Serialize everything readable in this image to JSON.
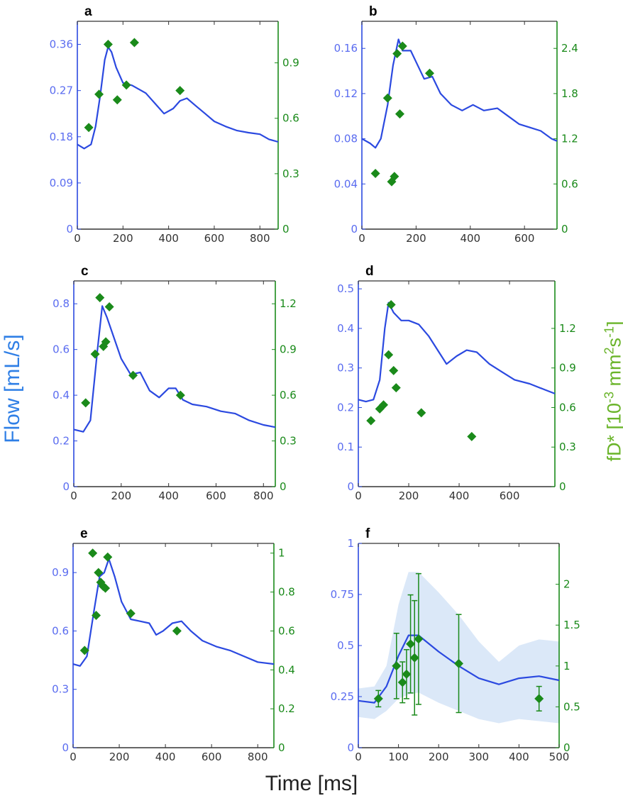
{
  "labels": {
    "x": "Time [ms]",
    "y_left": "Flow [mL/s]",
    "y_right": "fD* [10-3 mm2s-1]"
  },
  "colors": {
    "flow": "#2b49e0",
    "flow_axis": "#5a6cf0",
    "fd": "#1a8a1a",
    "band": "#dbe8f8"
  },
  "chart_data": [
    {
      "type": "line",
      "panel": "a",
      "xlim": [
        0,
        880
      ],
      "xticks": [
        0,
        200,
        400,
        600,
        800
      ],
      "ylim_left": [
        0,
        0.405
      ],
      "yticks_left": [
        0,
        0.09,
        0.18,
        0.27,
        0.36
      ],
      "ylim_right": [
        0,
        1.125
      ],
      "yticks_right": [
        0,
        0.3,
        0.6,
        0.9
      ],
      "flow": [
        [
          0,
          0.165
        ],
        [
          30,
          0.157
        ],
        [
          60,
          0.165
        ],
        [
          80,
          0.2
        ],
        [
          100,
          0.26
        ],
        [
          120,
          0.33
        ],
        [
          135,
          0.355
        ],
        [
          150,
          0.345
        ],
        [
          170,
          0.315
        ],
        [
          200,
          0.285
        ],
        [
          240,
          0.28
        ],
        [
          300,
          0.265
        ],
        [
          350,
          0.24
        ],
        [
          380,
          0.225
        ],
        [
          420,
          0.235
        ],
        [
          450,
          0.25
        ],
        [
          480,
          0.255
        ],
        [
          520,
          0.24
        ],
        [
          560,
          0.225
        ],
        [
          600,
          0.21
        ],
        [
          650,
          0.2
        ],
        [
          700,
          0.192
        ],
        [
          750,
          0.188
        ],
        [
          800,
          0.185
        ],
        [
          840,
          0.175
        ],
        [
          880,
          0.17
        ]
      ],
      "fd": [
        [
          50,
          0.55
        ],
        [
          95,
          0.73
        ],
        [
          135,
          1.0
        ],
        [
          175,
          0.7
        ],
        [
          215,
          0.78
        ],
        [
          250,
          1.01
        ],
        [
          450,
          0.75
        ]
      ]
    },
    {
      "type": "line",
      "panel": "b",
      "xlim": [
        0,
        720
      ],
      "xticks": [
        0,
        200,
        400,
        600
      ],
      "ylim_left": [
        0,
        0.184
      ],
      "yticks_left": [
        0,
        0.04,
        0.08,
        0.12,
        0.16
      ],
      "ylim_right": [
        0,
        2.76
      ],
      "yticks_right": [
        0,
        0.6,
        1.2,
        1.8,
        2.4
      ],
      "flow": [
        [
          0,
          0.08
        ],
        [
          30,
          0.076
        ],
        [
          50,
          0.072
        ],
        [
          70,
          0.08
        ],
        [
          95,
          0.11
        ],
        [
          115,
          0.145
        ],
        [
          135,
          0.168
        ],
        [
          150,
          0.158
        ],
        [
          180,
          0.158
        ],
        [
          200,
          0.148
        ],
        [
          230,
          0.133
        ],
        [
          260,
          0.135
        ],
        [
          290,
          0.12
        ],
        [
          330,
          0.11
        ],
        [
          370,
          0.105
        ],
        [
          410,
          0.11
        ],
        [
          450,
          0.105
        ],
        [
          500,
          0.107
        ],
        [
          540,
          0.1
        ],
        [
          580,
          0.093
        ],
        [
          620,
          0.09
        ],
        [
          660,
          0.087
        ],
        [
          700,
          0.08
        ],
        [
          720,
          0.078
        ]
      ],
      "fd": [
        [
          50,
          0.74
        ],
        [
          95,
          1.74
        ],
        [
          110,
          0.63
        ],
        [
          120,
          0.7
        ],
        [
          130,
          2.33
        ],
        [
          140,
          1.53
        ],
        [
          150,
          2.43
        ],
        [
          250,
          2.07
        ]
      ]
    },
    {
      "type": "line",
      "panel": "c",
      "xlim": [
        0,
        850
      ],
      "xticks": [
        0,
        200,
        400,
        600,
        800
      ],
      "ylim_left": [
        0,
        0.9
      ],
      "yticks_left": [
        0,
        0.2,
        0.4,
        0.6,
        0.8
      ],
      "ylim_right": [
        0,
        1.35
      ],
      "yticks_right": [
        0,
        0.3,
        0.6,
        0.9,
        1.2
      ],
      "flow": [
        [
          0,
          0.25
        ],
        [
          40,
          0.24
        ],
        [
          70,
          0.29
        ],
        [
          100,
          0.6
        ],
        [
          120,
          0.79
        ],
        [
          140,
          0.74
        ],
        [
          170,
          0.65
        ],
        [
          200,
          0.56
        ],
        [
          240,
          0.49
        ],
        [
          280,
          0.5
        ],
        [
          320,
          0.42
        ],
        [
          360,
          0.39
        ],
        [
          400,
          0.43
        ],
        [
          430,
          0.43
        ],
        [
          460,
          0.38
        ],
        [
          500,
          0.36
        ],
        [
          560,
          0.35
        ],
        [
          620,
          0.33
        ],
        [
          680,
          0.32
        ],
        [
          740,
          0.29
        ],
        [
          800,
          0.27
        ],
        [
          850,
          0.26
        ]
      ],
      "fd": [
        [
          50,
          0.55
        ],
        [
          90,
          0.87
        ],
        [
          110,
          1.24
        ],
        [
          125,
          0.92
        ],
        [
          135,
          0.95
        ],
        [
          150,
          1.18
        ],
        [
          250,
          0.73
        ],
        [
          450,
          0.6
        ]
      ]
    },
    {
      "type": "line",
      "panel": "d",
      "xlim": [
        0,
        780
      ],
      "xticks": [
        0,
        200,
        400,
        600
      ],
      "ylim_left": [
        0,
        0.52
      ],
      "yticks_left": [
        0,
        0.1,
        0.2,
        0.3,
        0.4,
        0.5
      ],
      "ylim_right": [
        0,
        1.56
      ],
      "yticks_right": [
        0,
        0.3,
        0.6,
        0.9,
        1.2
      ],
      "flow": [
        [
          0,
          0.22
        ],
        [
          30,
          0.215
        ],
        [
          60,
          0.22
        ],
        [
          85,
          0.27
        ],
        [
          105,
          0.4
        ],
        [
          120,
          0.465
        ],
        [
          140,
          0.44
        ],
        [
          170,
          0.42
        ],
        [
          200,
          0.42
        ],
        [
          240,
          0.41
        ],
        [
          280,
          0.38
        ],
        [
          320,
          0.34
        ],
        [
          350,
          0.31
        ],
        [
          390,
          0.33
        ],
        [
          430,
          0.345
        ],
        [
          470,
          0.34
        ],
        [
          520,
          0.31
        ],
        [
          570,
          0.29
        ],
        [
          620,
          0.27
        ],
        [
          680,
          0.26
        ],
        [
          740,
          0.245
        ],
        [
          780,
          0.235
        ]
      ],
      "fd": [
        [
          50,
          0.5
        ],
        [
          85,
          0.59
        ],
        [
          100,
          0.62
        ],
        [
          120,
          1.0
        ],
        [
          130,
          1.38
        ],
        [
          140,
          0.88
        ],
        [
          150,
          0.75
        ],
        [
          250,
          0.56
        ],
        [
          450,
          0.38
        ]
      ]
    },
    {
      "type": "line",
      "panel": "e",
      "xlim": [
        0,
        870
      ],
      "xticks": [
        0,
        200,
        400,
        600,
        800
      ],
      "ylim_left": [
        0,
        1.05
      ],
      "yticks_left": [
        0,
        0.3,
        0.6,
        0.9
      ],
      "ylim_right": [
        0,
        1.05
      ],
      "yticks_right": [
        0,
        0.2,
        0.4,
        0.6,
        0.8,
        1
      ],
      "flow": [
        [
          0,
          0.43
        ],
        [
          30,
          0.42
        ],
        [
          60,
          0.47
        ],
        [
          90,
          0.7
        ],
        [
          115,
          0.88
        ],
        [
          135,
          0.9
        ],
        [
          155,
          0.97
        ],
        [
          180,
          0.88
        ],
        [
          210,
          0.75
        ],
        [
          250,
          0.66
        ],
        [
          290,
          0.65
        ],
        [
          330,
          0.64
        ],
        [
          360,
          0.58
        ],
        [
          390,
          0.6
        ],
        [
          430,
          0.64
        ],
        [
          470,
          0.65
        ],
        [
          510,
          0.6
        ],
        [
          560,
          0.55
        ],
        [
          620,
          0.52
        ],
        [
          680,
          0.5
        ],
        [
          740,
          0.47
        ],
        [
          800,
          0.44
        ],
        [
          870,
          0.43
        ]
      ],
      "fd": [
        [
          50,
          0.5
        ],
        [
          85,
          1.0
        ],
        [
          100,
          0.68
        ],
        [
          110,
          0.9
        ],
        [
          120,
          0.85
        ],
        [
          130,
          0.83
        ],
        [
          140,
          0.82
        ],
        [
          150,
          0.98
        ],
        [
          250,
          0.69
        ],
        [
          450,
          0.6
        ]
      ]
    },
    {
      "type": "line",
      "panel": "f",
      "xlim": [
        0,
        500
      ],
      "xticks": [
        0,
        100,
        200,
        300,
        400,
        500
      ],
      "ylim_left": [
        0,
        1
      ],
      "yticks_left": [
        0,
        0.25,
        0.5,
        0.75,
        1
      ],
      "ylim_right": [
        0,
        2.5
      ],
      "yticks_right": [
        0,
        0.5,
        1,
        1.5,
        2
      ],
      "flow": [
        [
          0,
          0.23
        ],
        [
          40,
          0.22
        ],
        [
          70,
          0.3
        ],
        [
          100,
          0.45
        ],
        [
          125,
          0.55
        ],
        [
          150,
          0.55
        ],
        [
          200,
          0.47
        ],
        [
          250,
          0.4
        ],
        [
          300,
          0.34
        ],
        [
          350,
          0.31
        ],
        [
          400,
          0.34
        ],
        [
          450,
          0.35
        ],
        [
          500,
          0.33
        ]
      ],
      "band_upper": [
        [
          0,
          0.29
        ],
        [
          40,
          0.3
        ],
        [
          70,
          0.4
        ],
        [
          100,
          0.7
        ],
        [
          125,
          0.86
        ],
        [
          150,
          0.86
        ],
        [
          200,
          0.76
        ],
        [
          250,
          0.65
        ],
        [
          300,
          0.52
        ],
        [
          350,
          0.42
        ],
        [
          400,
          0.5
        ],
        [
          450,
          0.53
        ],
        [
          500,
          0.52
        ]
      ],
      "band_lower": [
        [
          0,
          0.15
        ],
        [
          40,
          0.14
        ],
        [
          70,
          0.18
        ],
        [
          100,
          0.24
        ],
        [
          125,
          0.26
        ],
        [
          150,
          0.27
        ],
        [
          200,
          0.22
        ],
        [
          250,
          0.18
        ],
        [
          300,
          0.14
        ],
        [
          350,
          0.12
        ],
        [
          400,
          0.14
        ],
        [
          450,
          0.13
        ],
        [
          500,
          0.12
        ]
      ],
      "fd": [
        [
          50,
          0.6,
          0.1
        ],
        [
          95,
          1.0,
          0.4
        ],
        [
          110,
          0.8,
          0.25
        ],
        [
          120,
          0.9,
          0.3
        ],
        [
          130,
          1.27,
          0.6
        ],
        [
          140,
          1.1,
          0.7
        ],
        [
          150,
          1.33,
          0.8
        ],
        [
          250,
          1.03,
          0.6
        ],
        [
          450,
          0.6,
          0.15
        ]
      ]
    }
  ]
}
